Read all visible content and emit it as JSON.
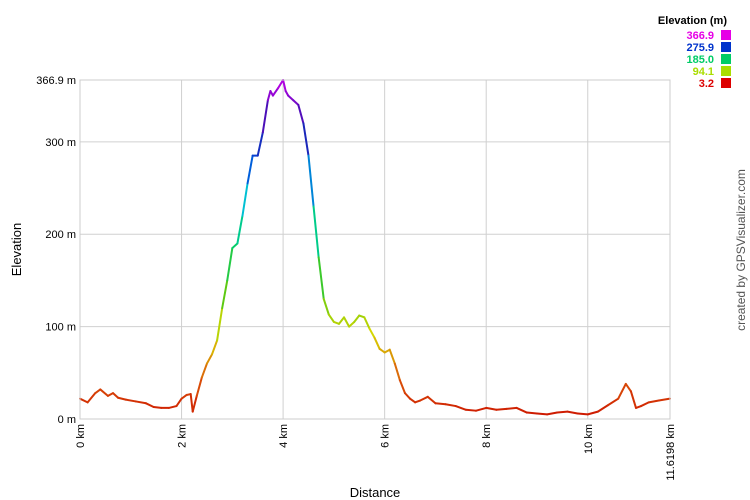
{
  "chart_data": {
    "type": "line",
    "xlabel": "Distance",
    "ylabel": "Elevation",
    "x_unit": "km",
    "y_unit": "m",
    "xlim": [
      0,
      11.6198
    ],
    "ylim": [
      0,
      366.9
    ],
    "x_tick_labels": [
      "0 km",
      "2 km",
      "4 km",
      "6 km",
      "8 km",
      "10 km",
      "11.6198 km"
    ],
    "y_tick_labels": [
      "0 m",
      "100 m",
      "200 m",
      "300 m",
      "366.9 m"
    ],
    "legend": {
      "title": "Elevation (m)",
      "position": "top-right",
      "entries": [
        {
          "label": "366.9",
          "color": "#e600e6"
        },
        {
          "label": "275.9",
          "color": "#0033cc"
        },
        {
          "label": "185.0",
          "color": "#00cc66"
        },
        {
          "label": "94.1",
          "color": "#aadd00"
        },
        {
          "label": "3.2",
          "color": "#dd0000"
        }
      ]
    },
    "grid": true,
    "credit": "created by GPSVisualizer.com",
    "x": [
      0,
      0.15,
      0.3,
      0.4,
      0.55,
      0.65,
      0.75,
      0.9,
      1.1,
      1.3,
      1.45,
      1.6,
      1.75,
      1.9,
      2.0,
      2.1,
      2.18,
      2.22,
      2.3,
      2.4,
      2.5,
      2.6,
      2.7,
      2.8,
      2.9,
      3.0,
      3.1,
      3.2,
      3.3,
      3.4,
      3.5,
      3.6,
      3.7,
      3.75,
      3.8,
      3.9,
      4.0,
      4.05,
      4.1,
      4.2,
      4.3,
      4.4,
      4.5,
      4.6,
      4.7,
      4.8,
      4.9,
      5.0,
      5.1,
      5.2,
      5.3,
      5.4,
      5.5,
      5.6,
      5.7,
      5.8,
      5.9,
      6.0,
      6.1,
      6.2,
      6.3,
      6.4,
      6.5,
      6.6,
      6.7,
      6.85,
      7.0,
      7.2,
      7.4,
      7.6,
      7.8,
      8.0,
      8.2,
      8.4,
      8.6,
      8.8,
      9.0,
      9.2,
      9.4,
      9.6,
      9.8,
      10.0,
      10.2,
      10.4,
      10.6,
      10.75,
      10.85,
      10.95,
      11.05,
      11.2,
      11.4,
      11.6198
    ],
    "values": [
      22,
      18,
      28,
      32,
      25,
      28,
      23,
      21,
      19,
      17,
      13,
      12,
      12,
      14,
      22,
      26,
      27,
      8,
      25,
      45,
      60,
      70,
      85,
      120,
      150,
      185,
      190,
      220,
      255,
      285,
      285,
      310,
      345,
      355,
      350,
      358,
      366.9,
      355,
      350,
      345,
      340,
      320,
      285,
      230,
      175,
      130,
      113,
      105,
      103,
      110,
      100,
      105,
      112,
      110,
      98,
      88,
      76,
      72,
      75,
      60,
      42,
      28,
      22,
      18,
      20,
      24,
      17,
      16,
      14,
      10,
      9,
      12,
      10,
      11,
      12,
      7,
      6,
      5,
      7,
      8,
      6,
      5,
      8,
      15,
      22,
      38,
      30,
      12,
      14,
      18,
      20,
      22
    ]
  }
}
